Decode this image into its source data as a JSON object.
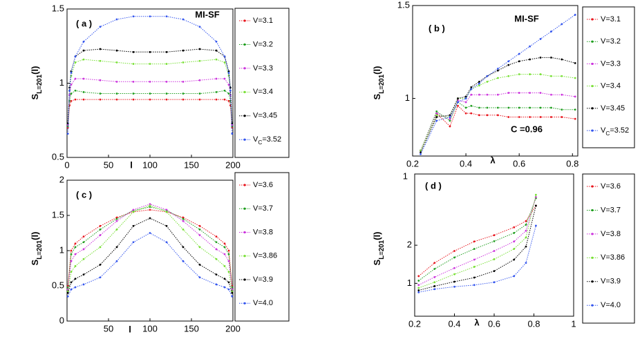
{
  "chart_data": [
    {
      "type": "line",
      "panel_label": "( a )",
      "annotations": [
        "MI-SF"
      ],
      "x_label": "l",
      "y_label": "SL=201(l)",
      "xlim": [
        0,
        200
      ],
      "xticks": [
        0,
        50,
        100,
        150,
        200
      ],
      "ylim": [
        0.5,
        1.5
      ],
      "yticks": [
        0.5,
        1,
        1.5
      ],
      "x": [
        1,
        3,
        5,
        10,
        20,
        40,
        60,
        80,
        100,
        120,
        140,
        160,
        180,
        190,
        195,
        197,
        199
      ],
      "series": [
        {
          "name": "V=3.1",
          "color": "#e8141c",
          "values": [
            0.7,
            0.85,
            0.88,
            0.89,
            0.89,
            0.89,
            0.89,
            0.89,
            0.89,
            0.89,
            0.89,
            0.89,
            0.89,
            0.89,
            0.88,
            0.85,
            0.7
          ]
        },
        {
          "name": "V=3.2",
          "color": "#1f9e1f",
          "values": [
            0.71,
            0.88,
            0.93,
            0.95,
            0.94,
            0.93,
            0.93,
            0.93,
            0.93,
            0.93,
            0.93,
            0.93,
            0.94,
            0.95,
            0.93,
            0.88,
            0.71
          ]
        },
        {
          "name": "V=3.3",
          "color": "#cc33dd",
          "values": [
            0.72,
            0.92,
            0.99,
            1.03,
            1.03,
            1.02,
            1.01,
            1.01,
            1.01,
            1.01,
            1.01,
            1.02,
            1.03,
            1.03,
            0.99,
            0.92,
            0.72
          ]
        },
        {
          "name": "V=3.4",
          "color": "#77e033",
          "values": [
            0.73,
            0.95,
            1.05,
            1.14,
            1.16,
            1.15,
            1.14,
            1.13,
            1.13,
            1.13,
            1.14,
            1.15,
            1.16,
            1.14,
            1.05,
            0.95,
            0.73
          ]
        },
        {
          "name": "V=3.45",
          "color": "#000000",
          "values": [
            0.73,
            0.97,
            1.08,
            1.18,
            1.22,
            1.23,
            1.22,
            1.21,
            1.21,
            1.21,
            1.22,
            1.23,
            1.22,
            1.18,
            1.08,
            0.97,
            0.73
          ]
        },
        {
          "name": "VC=3.52",
          "color": "#3355ee",
          "values": [
            0.66,
            0.95,
            1.07,
            1.18,
            1.28,
            1.38,
            1.43,
            1.45,
            1.45,
            1.45,
            1.43,
            1.38,
            1.28,
            1.18,
            1.07,
            0.95,
            0.66
          ]
        }
      ]
    },
    {
      "type": "line",
      "panel_label": "( b )",
      "annotations": [
        "MI-SF",
        "C =0.96"
      ],
      "x_label": "λ",
      "y_label": "SL=201(l)",
      "xlim": [
        0.2,
        0.82
      ],
      "xticks": [
        0.2,
        0.4,
        0.6,
        0.8
      ],
      "ylim": [
        0.69,
        1.5
      ],
      "yticks": [
        1,
        1.5
      ],
      "x": [
        0.23,
        0.29,
        0.34,
        0.37,
        0.4,
        0.42,
        0.45,
        0.48,
        0.52,
        0.56,
        0.6,
        0.64,
        0.68,
        0.72,
        0.76,
        0.81
      ],
      "series": [
        {
          "name": "V=3.1",
          "color": "#e8141c",
          "values": [
            0.72,
            0.92,
            0.85,
            0.96,
            0.92,
            0.92,
            0.91,
            0.91,
            0.91,
            0.9,
            0.9,
            0.9,
            0.9,
            0.9,
            0.9,
            0.89
          ]
        },
        {
          "name": "V=3.2",
          "color": "#1f9e1f",
          "values": [
            0.72,
            0.93,
            0.88,
            0.98,
            0.95,
            0.96,
            0.95,
            0.95,
            0.95,
            0.95,
            0.95,
            0.95,
            0.95,
            0.95,
            0.94,
            0.94
          ]
        },
        {
          "name": "V=3.3",
          "color": "#cc33dd",
          "values": [
            0.72,
            0.92,
            0.89,
            0.99,
            0.98,
            1.02,
            1.02,
            1.02,
            1.02,
            1.03,
            1.03,
            1.03,
            1.03,
            1.02,
            1.02,
            1.01
          ]
        },
        {
          "name": "V=3.4",
          "color": "#77e033",
          "values": [
            0.72,
            0.91,
            0.9,
            1.0,
            1.0,
            1.05,
            1.07,
            1.09,
            1.11,
            1.12,
            1.13,
            1.13,
            1.13,
            1.12,
            1.12,
            1.11
          ]
        },
        {
          "name": "V=3.45",
          "color": "#000000",
          "values": [
            0.71,
            0.9,
            0.91,
            1.0,
            1.01,
            1.06,
            1.09,
            1.12,
            1.15,
            1.18,
            1.2,
            1.21,
            1.22,
            1.22,
            1.21,
            1.19
          ]
        },
        {
          "name": "VC=3.52",
          "color": "#3355ee",
          "values": [
            0.7,
            0.88,
            0.9,
            0.98,
            1.0,
            1.05,
            1.08,
            1.12,
            1.16,
            1.2,
            1.24,
            1.28,
            1.32,
            1.36,
            1.4,
            1.45
          ]
        }
      ]
    },
    {
      "type": "line",
      "panel_label": "( c )",
      "annotations": [],
      "x_label": "l",
      "y_label": "SL=201(l)",
      "xlim": [
        0,
        200
      ],
      "xticks": [
        50,
        100,
        150,
        200
      ],
      "ylim": [
        0,
        2
      ],
      "yticks": [
        0,
        0.5,
        1,
        1.5,
        2
      ],
      "x": [
        1,
        5,
        10,
        20,
        40,
        60,
        80,
        100,
        120,
        140,
        160,
        180,
        190,
        195,
        199
      ],
      "series": [
        {
          "name": "V=3.6",
          "color": "#e8141c",
          "values": [
            0.5,
            1.0,
            1.1,
            1.2,
            1.35,
            1.47,
            1.55,
            1.58,
            1.55,
            1.47,
            1.35,
            1.2,
            1.1,
            1.0,
            0.5
          ]
        },
        {
          "name": "V=3.7",
          "color": "#1f9e1f",
          "values": [
            0.48,
            0.95,
            1.05,
            1.12,
            1.3,
            1.45,
            1.57,
            1.62,
            1.57,
            1.45,
            1.3,
            1.12,
            1.05,
            0.95,
            0.48
          ]
        },
        {
          "name": "V=3.8",
          "color": "#cc33dd",
          "values": [
            0.45,
            0.85,
            0.95,
            1.02,
            1.22,
            1.42,
            1.58,
            1.66,
            1.58,
            1.42,
            1.22,
            1.02,
            0.95,
            0.85,
            0.45
          ]
        },
        {
          "name": "V=3.86",
          "color": "#77e033",
          "values": [
            0.42,
            0.7,
            0.78,
            0.88,
            1.05,
            1.3,
            1.55,
            1.64,
            1.55,
            1.3,
            1.05,
            0.88,
            0.78,
            0.7,
            0.42
          ]
        },
        {
          "name": "V=3.9",
          "color": "#000000",
          "values": [
            0.4,
            0.55,
            0.6,
            0.66,
            0.8,
            1.05,
            1.35,
            1.46,
            1.35,
            1.05,
            0.8,
            0.66,
            0.6,
            0.55,
            0.4
          ]
        },
        {
          "name": "V=4.0",
          "color": "#3355ee",
          "values": [
            0.35,
            0.45,
            0.48,
            0.52,
            0.62,
            0.85,
            1.12,
            1.25,
            1.12,
            0.85,
            0.62,
            0.52,
            0.48,
            0.45,
            0.35
          ]
        }
      ]
    },
    {
      "type": "line",
      "panel_label": "( d )",
      "annotations": [
        "1"
      ],
      "x_label": "λ",
      "y_label": "SL=201(l)",
      "log_y": true,
      "xlim": [
        0.2,
        1
      ],
      "xticks": [
        0.2,
        0.4,
        0.6,
        0.8,
        1
      ],
      "ylim": [
        0.55,
        7.3
      ],
      "yticks": [
        1,
        2
      ],
      "x": [
        0.22,
        0.3,
        0.4,
        0.5,
        0.6,
        0.7,
        0.76,
        0.81
      ],
      "series": [
        {
          "name": "V=3.6",
          "color": "#e8141c",
          "values": [
            1.14,
            1.45,
            1.8,
            2.14,
            2.4,
            2.77,
            3.1,
            4.1
          ]
        },
        {
          "name": "V=3.7",
          "color": "#1f9e1f",
          "values": [
            1.05,
            1.3,
            1.6,
            1.87,
            2.15,
            2.5,
            2.9,
            4.7
          ]
        },
        {
          "name": "V=3.8",
          "color": "#cc33dd",
          "values": [
            0.97,
            1.12,
            1.32,
            1.54,
            1.8,
            2.14,
            2.6,
            4.8
          ]
        },
        {
          "name": "V=3.86",
          "color": "#77e033",
          "values": [
            0.92,
            1.02,
            1.18,
            1.35,
            1.55,
            1.87,
            2.3,
            5.0
          ]
        },
        {
          "name": "V=3.9",
          "color": "#000000",
          "values": [
            0.88,
            0.95,
            1.03,
            1.11,
            1.25,
            1.54,
            1.95,
            4.1
          ]
        },
        {
          "name": "V=4.0",
          "color": "#3355ee",
          "values": [
            0.85,
            0.9,
            0.94,
            0.97,
            1.02,
            1.14,
            1.45,
            2.85
          ]
        }
      ]
    }
  ]
}
